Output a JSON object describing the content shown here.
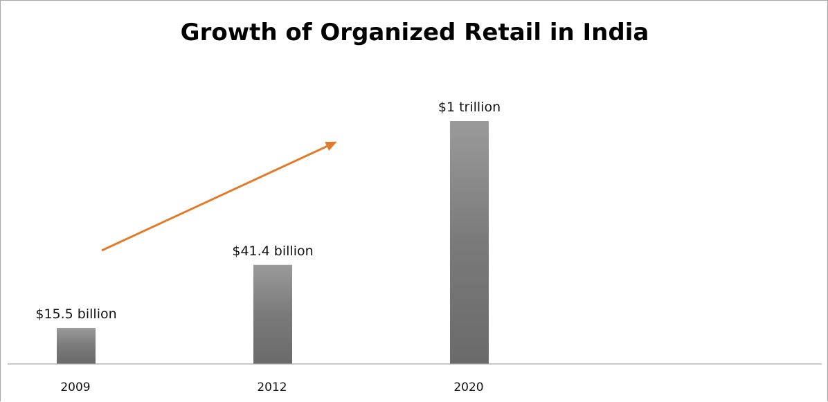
{
  "chart_data": {
    "type": "bar",
    "title": "Growth of Organized Retail in India",
    "categories": [
      "2009",
      "2012",
      "2020"
    ],
    "values": [
      15.5,
      41.4,
      1000
    ],
    "unit": "billion USD",
    "data_labels": [
      "$15.5 billion",
      "$41.4 billion",
      "$1 trillion"
    ],
    "relative_bar_heights": [
      0.148,
      0.408,
      1.0
    ],
    "xlabel": "",
    "ylabel": "",
    "grid": false,
    "legend": "none",
    "annotation": "upward trend arrow",
    "colors": {
      "bar_top": "#9a9a9a",
      "bar_mid": "#7a7a7a",
      "bar_bottom": "#6a6a6a",
      "arrow": "#e07b2a",
      "axis": "#a6a6a6"
    }
  }
}
